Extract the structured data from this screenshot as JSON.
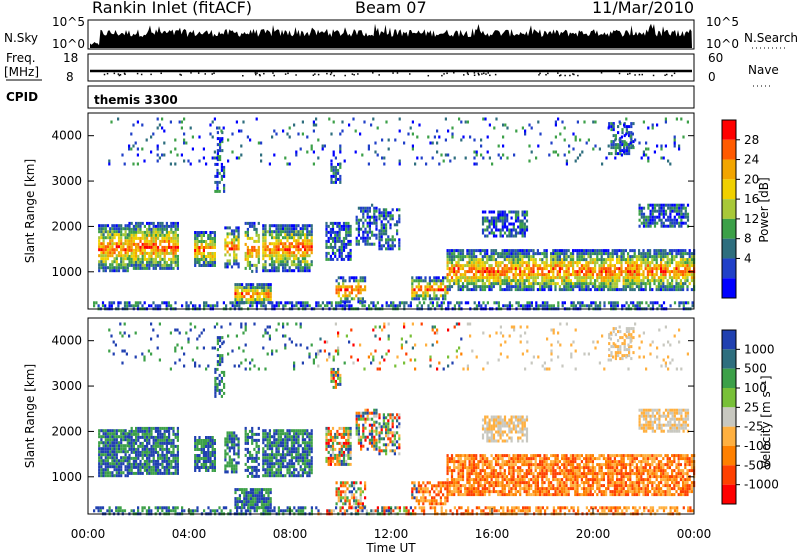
{
  "header": {
    "station": "Rankin Inlet (fitACF)",
    "beam": "Beam 07",
    "date": "11/Mar/2010"
  },
  "left_labels": {
    "nsky": "N.Sky",
    "nsky_ticks": [
      "10^5",
      "10^0"
    ],
    "freq": "Freq.",
    "freq_unit": "[MHz]",
    "freq_ticks": [
      "18",
      "8"
    ],
    "cpid": "CPID"
  },
  "right_labels": {
    "nsearch": "N.Search",
    "nsearch_ticks": [
      "10^5",
      "10^0"
    ],
    "nave": "Nave",
    "nave_ticks": [
      "60",
      "0"
    ]
  },
  "cpid_text": "themis 3300",
  "x_axis": {
    "label": "Time UT",
    "ticks": [
      "00:00",
      "04:00",
      "08:00",
      "12:00",
      "16:00",
      "20:00",
      "00:00"
    ]
  },
  "power_panel": {
    "ylabel": "Slant Range [km]",
    "yticks": [
      "4000",
      "3000",
      "2000",
      "1000"
    ],
    "colorbar_label": "Power [dB]",
    "colorbar_ticks": [
      "28",
      "24",
      "20",
      "16",
      "12",
      "8",
      "4"
    ],
    "colors": [
      "#ff0000",
      "#ff5a00",
      "#f2a500",
      "#f0d000",
      "#a8c838",
      "#3ca048",
      "#2e6e7e",
      "#2040c8",
      "#0000ff"
    ]
  },
  "velocity_panel": {
    "ylabel": "Slant Range [km]",
    "yticks": [
      "4000",
      "3000",
      "2000",
      "1000"
    ],
    "colorbar_label": "Velocity [m s⁻¹]",
    "colorbar_ticks": [
      "1000",
      "500",
      "100",
      "25",
      "-25",
      "-100",
      "-500",
      "-1000"
    ],
    "colors": [
      "#2040b0",
      "#2e6e7e",
      "#3ca048",
      "#78c038",
      "#c8c8c0",
      "#ffb040",
      "#ff8000",
      "#ff4000",
      "#ff0000"
    ]
  },
  "chart_data": {
    "type": "heatmap",
    "title": "Rankin Inlet (fitACF)",
    "x": [
      "00:00",
      "04:00",
      "08:00",
      "12:00",
      "16:00",
      "20:00",
      "00:00"
    ],
    "xlabel": "Time UT",
    "ylabel": "Slant Range [km]",
    "ylim": [
      180,
      4500
    ],
    "panels": [
      {
        "name": "Power",
        "unit": "dB",
        "color_range": [
          0,
          30
        ]
      },
      {
        "name": "Velocity",
        "unit": "m s⁻¹",
        "color_range": [
          -1000,
          1000
        ]
      }
    ],
    "nsky_range": [
      "10^0",
      "10^5"
    ],
    "freq_range_mhz": [
      8,
      18
    ],
    "nave_range": [
      0,
      60
    ]
  }
}
